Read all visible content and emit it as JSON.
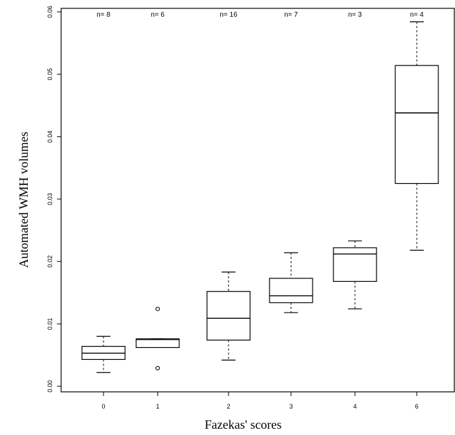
{
  "chart_data": {
    "type": "boxplot",
    "xlabel": "Fazekas' scores",
    "ylabel": "Automated WMH volumes",
    "ylim": [
      0,
      0.06
    ],
    "y_ticks": [
      {
        "value": 0.0,
        "label": "0.00"
      },
      {
        "value": 0.01,
        "label": "0.01"
      },
      {
        "value": 0.02,
        "label": "0.02"
      },
      {
        "value": 0.03,
        "label": "0.03"
      },
      {
        "value": 0.04,
        "label": "0.04"
      },
      {
        "value": 0.05,
        "label": "0.05"
      },
      {
        "value": 0.06,
        "label": "0.06"
      }
    ],
    "groups": [
      {
        "category": "0",
        "n_label": "n= 8",
        "whisker_low": 0.0022,
        "q1": 0.0043,
        "median": 0.0053,
        "q3": 0.0064,
        "whisker_high": 0.008,
        "outliers": []
      },
      {
        "category": "1",
        "n_label": "n= 6",
        "whisker_low": 0.0062,
        "q1": 0.0062,
        "median": 0.0075,
        "q3": 0.0076,
        "whisker_high": 0.0076,
        "outliers": [
          0.0029,
          0.0124
        ]
      },
      {
        "category": "2",
        "n_label": "n= 16",
        "whisker_low": 0.0042,
        "q1": 0.0074,
        "median": 0.0109,
        "q3": 0.0152,
        "whisker_high": 0.0183,
        "outliers": []
      },
      {
        "category": "3",
        "n_label": "n= 7",
        "whisker_low": 0.0118,
        "q1": 0.0134,
        "median": 0.0145,
        "q3": 0.0173,
        "whisker_high": 0.0214,
        "outliers": []
      },
      {
        "category": "4",
        "n_label": "n= 3",
        "whisker_low": 0.0124,
        "q1": 0.0168,
        "median": 0.0212,
        "q3": 0.0222,
        "whisker_high": 0.0233,
        "outliers": []
      },
      {
        "category": "6",
        "n_label": "n= 4",
        "whisker_low": 0.0218,
        "q1": 0.0325,
        "median": 0.0438,
        "q3": 0.0514,
        "whisker_high": 0.0584,
        "outliers": []
      }
    ]
  }
}
